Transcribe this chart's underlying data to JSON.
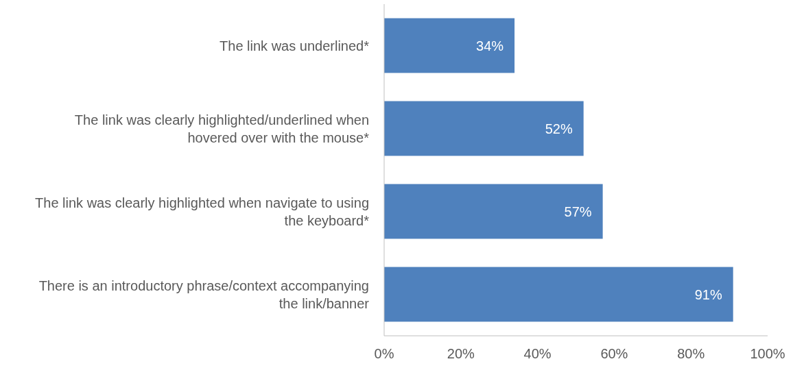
{
  "chart_data": {
    "type": "bar",
    "orientation": "horizontal",
    "categories": [
      "The link was underlined*",
      "The link was clearly highlighted/underlined when hovered over with the mouse*",
      "The link was clearly highlighted when navigate to using the keyboard*",
      "There is an introductory phrase/context accompanying the link/banner"
    ],
    "values": [
      34,
      52,
      57,
      91
    ],
    "value_labels": [
      "34%",
      "52%",
      "57%",
      "91%"
    ],
    "color": "#4f81bd",
    "xlim": [
      0,
      100
    ],
    "xticks": [
      {
        "value": 0,
        "label": "0%"
      },
      {
        "value": 20,
        "label": "20%"
      },
      {
        "value": 40,
        "label": "40%"
      },
      {
        "value": 60,
        "label": "60%"
      },
      {
        "value": 80,
        "label": "80%"
      },
      {
        "value": 100,
        "label": "100%"
      }
    ],
    "grid": false
  }
}
